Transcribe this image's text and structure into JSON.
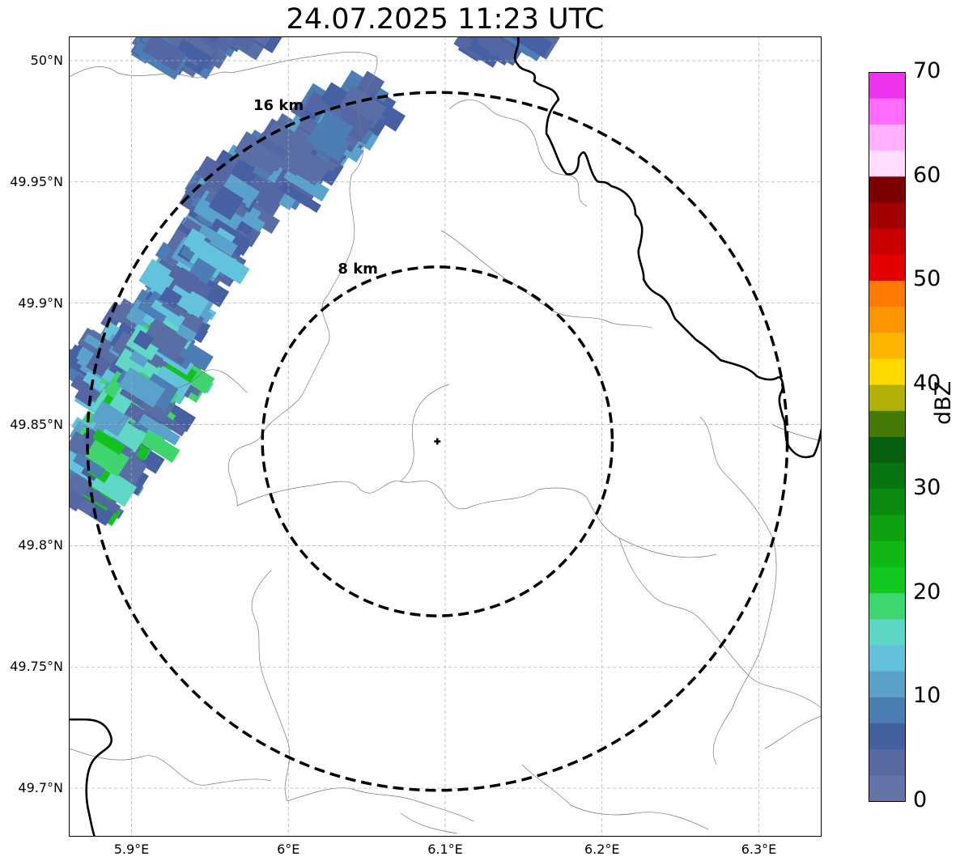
{
  "title": "24.07.2025 11:23 UTC",
  "map": {
    "extent": {
      "lon_min": 5.86,
      "lon_max": 6.34,
      "lat_min": 49.68,
      "lat_max": 50.01
    },
    "lat_ticks": [
      {
        "value": 50.0,
        "label": "50°N"
      },
      {
        "value": 49.95,
        "label": "49.95°N"
      },
      {
        "value": 49.9,
        "label": "49.9°N"
      },
      {
        "value": 49.85,
        "label": "49.85°N"
      },
      {
        "value": 49.8,
        "label": "49.8°N"
      },
      {
        "value": 49.75,
        "label": "49.75°N"
      },
      {
        "value": 49.7,
        "label": "49.7°N"
      }
    ],
    "lon_ticks": [
      {
        "value": 5.9,
        "label": "5.9°E"
      },
      {
        "value": 6.0,
        "label": "6°E"
      },
      {
        "value": 6.1,
        "label": "6.1°E"
      },
      {
        "value": 6.2,
        "label": "6.2°E"
      },
      {
        "value": 6.3,
        "label": "6.3°E"
      }
    ],
    "radar_site": {
      "lon": 6.095,
      "lat": 49.843
    },
    "range_rings": [
      {
        "label": "8 km",
        "radius_km": 8
      },
      {
        "label": "16 km",
        "radius_km": 16
      }
    ],
    "gridlines": true
  },
  "colorbar": {
    "label": "dBZ",
    "min": 0,
    "max": 70,
    "ticks": [
      "0",
      "10",
      "20",
      "30",
      "40",
      "50",
      "60",
      "70"
    ],
    "colors": [
      "#6673a8",
      "#5869a2",
      "#43609f",
      "#4b7cb2",
      "#5aa0c9",
      "#63c0db",
      "#5dd6c4",
      "#3dd66f",
      "#12c71e",
      "#10b815",
      "#0ea212",
      "#0b8a10",
      "#097510",
      "#06600d",
      "#467a07",
      "#b0b008",
      "#fed900",
      "#fcb500",
      "#fc9600",
      "#fe7a00",
      "#e30000",
      "#c90000",
      "#a20000",
      "#7a0000",
      "#ffddff",
      "#ffb0ff",
      "#ff6cff",
      "#ee33ee"
    ]
  },
  "echo_colors": [
    "#5566a5",
    "#4660a3",
    "#5a6ea6",
    "#4c7db4",
    "#5aa2cb",
    "#63c3dc",
    "#5fd8c5",
    "#3fd46e",
    "#14c21e"
  ]
}
